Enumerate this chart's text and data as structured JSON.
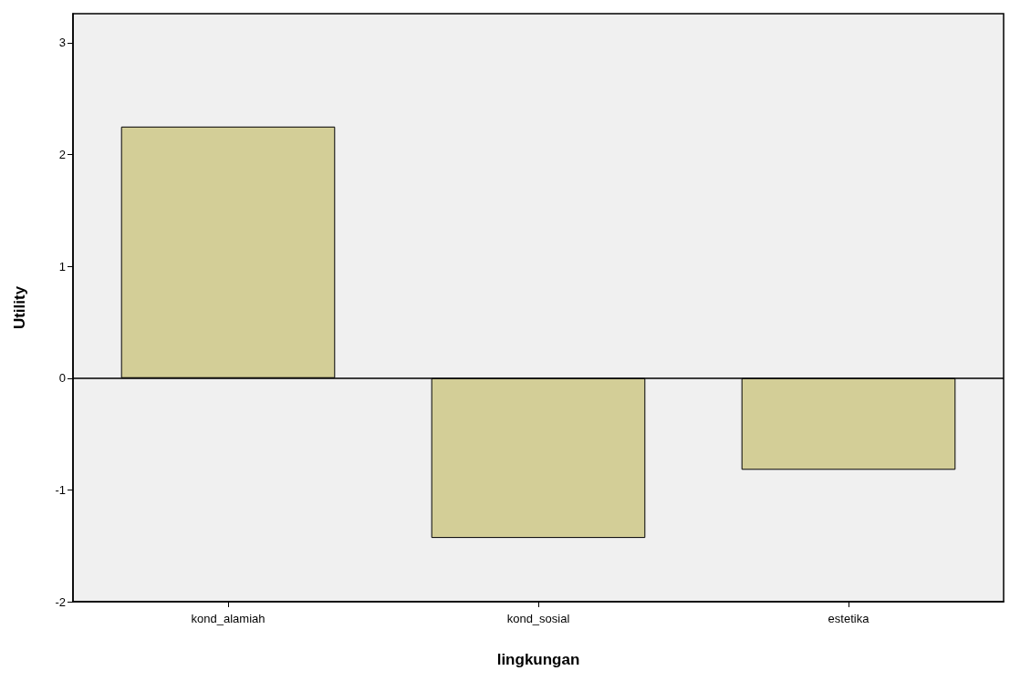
{
  "chart_data": {
    "type": "bar",
    "xlabel": "lingkungan",
    "ylabel": "Utility",
    "categories": [
      "kond_alamiah",
      "kond_sosial",
      "estetika"
    ],
    "values": [
      2.25,
      -1.43,
      -0.82
    ],
    "color": "#d3ce97",
    "ylim": [
      -2,
      3.26
    ],
    "yticks": [
      -2,
      -1,
      0,
      1,
      2,
      3
    ],
    "grid": false,
    "ref_lines": [
      {
        "axis": "y",
        "value": 0,
        "label": null,
        "color": "#000000"
      }
    ]
  }
}
